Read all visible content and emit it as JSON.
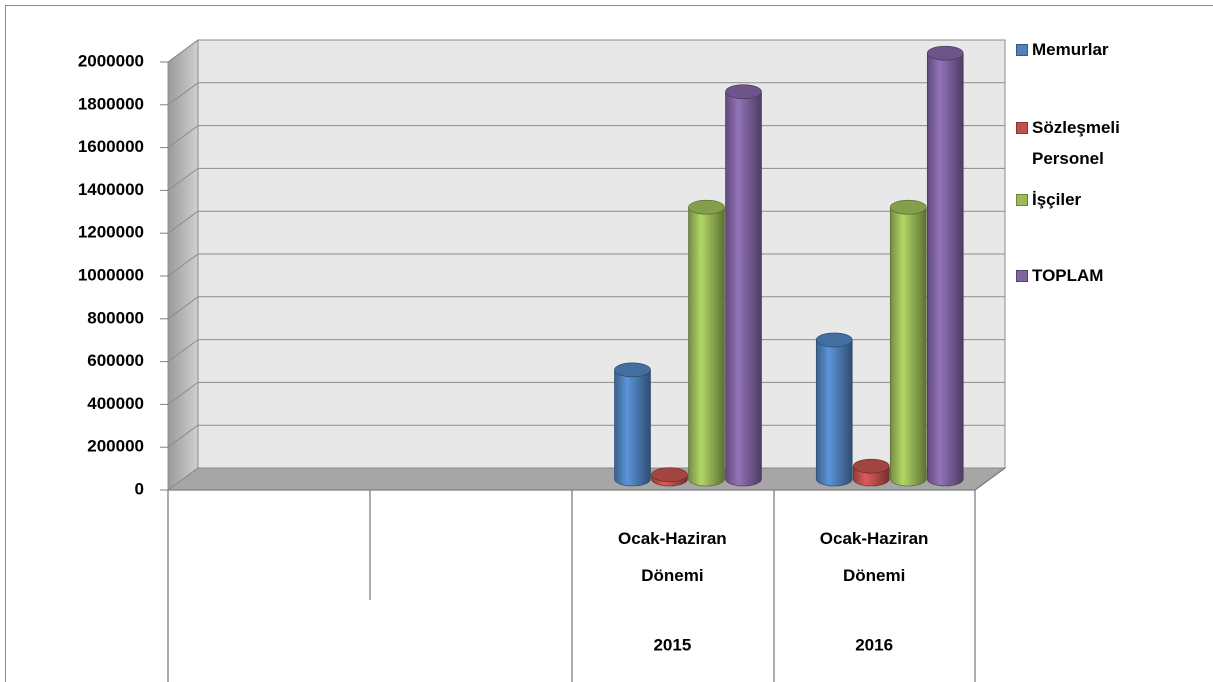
{
  "chart_data": {
    "type": "bar3d",
    "categories": [
      null,
      null,
      "Ocak-Haziran Dönemi",
      "Ocak-Haziran Dönemi"
    ],
    "category_groups": [
      null,
      null,
      "2015",
      "2016"
    ],
    "series": [
      {
        "name": "Memurlar",
        "color": "#4f81bd",
        "values": [
          null,
          null,
          510000,
          650000
        ]
      },
      {
        "name": "Sözleşmeli Personel",
        "color": "#c0504d",
        "values": [
          null,
          null,
          20000,
          60000
        ]
      },
      {
        "name": "İşçiler",
        "color": "#9bbb59",
        "values": [
          null,
          null,
          1270000,
          1270000
        ]
      },
      {
        "name": "TOPLAM",
        "color": "#8064a2",
        "values": [
          null,
          null,
          1810000,
          1990000
        ]
      }
    ],
    "ylim": [
      0,
      2000000
    ],
    "yticks": [
      0,
      200000,
      400000,
      600000,
      800000,
      1000000,
      1200000,
      1400000,
      1600000,
      1800000,
      2000000
    ],
    "grid": true,
    "legend": "right"
  }
}
